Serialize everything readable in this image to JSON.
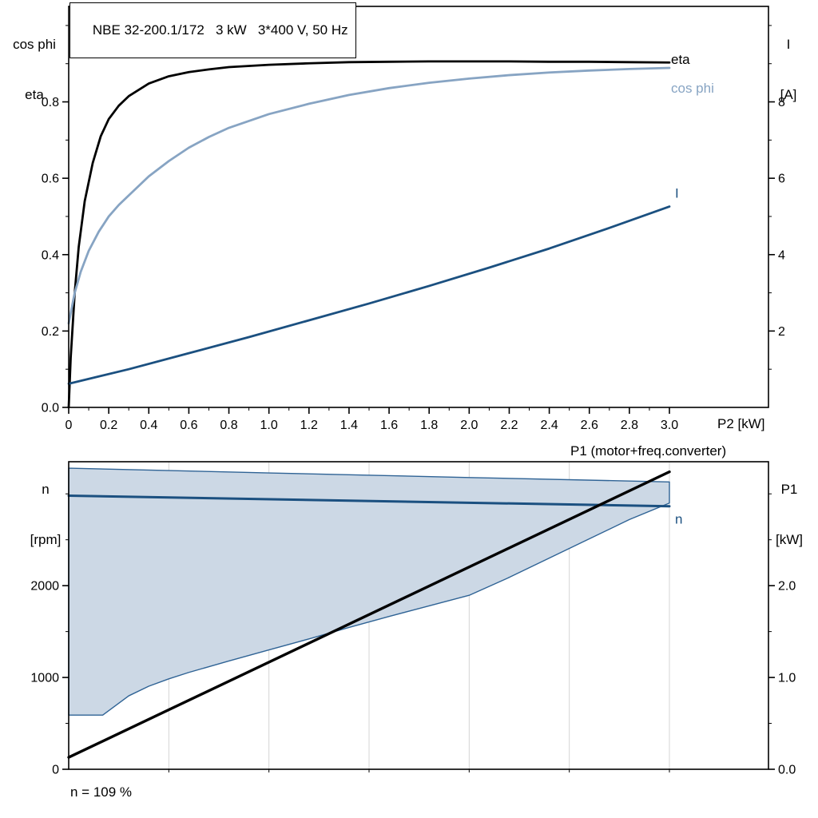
{
  "colors": {
    "background": "#ffffff",
    "frame": "#000000",
    "grid": "#d4d4d4",
    "dark_blue": "#1b5080",
    "light_blue": "#87a4c3",
    "area_fill": "#ccd8e5",
    "area_stroke": "#2f6395",
    "text": "#000000"
  },
  "chart_data": [
    {
      "id": "top",
      "type": "line",
      "title": "NBE 32-200.1/172   3 kW   3*400 V, 50 Hz",
      "x_axis": {
        "title": "P2 [kW]",
        "min": 0,
        "data_max": 3.0,
        "frame_max": 3.5,
        "minor_step": 0.1,
        "ticks": [
          {
            "v": 0,
            "label": "0"
          },
          {
            "v": 0.2,
            "label": "0.2"
          },
          {
            "v": 0.4,
            "label": "0.4"
          },
          {
            "v": 0.6,
            "label": "0.6"
          },
          {
            "v": 0.8,
            "label": "0.8"
          },
          {
            "v": 1.0,
            "label": "1.0"
          },
          {
            "v": 1.2,
            "label": "1.2"
          },
          {
            "v": 1.4,
            "label": "1.4"
          },
          {
            "v": 1.6,
            "label": "1.6"
          },
          {
            "v": 1.8,
            "label": "1.8"
          },
          {
            "v": 2.0,
            "label": "2.0"
          },
          {
            "v": 2.2,
            "label": "2.2"
          },
          {
            "v": 2.4,
            "label": "2.4"
          },
          {
            "v": 2.6,
            "label": "2.6"
          },
          {
            "v": 2.8,
            "label": "2.8"
          },
          {
            "v": 3.0,
            "label": "3.0"
          }
        ]
      },
      "left_axis": {
        "title": [
          "cos phi",
          "eta"
        ],
        "min": 0,
        "max": 1.05,
        "minor_step": 0.1,
        "ticks": [
          {
            "v": 0,
            "label": "0.0"
          },
          {
            "v": 0.2,
            "label": "0.2"
          },
          {
            "v": 0.4,
            "label": "0.4"
          },
          {
            "v": 0.6,
            "label": "0.6"
          },
          {
            "v": 0.8,
            "label": "0.8"
          }
        ]
      },
      "right_axis": {
        "title": [
          "I",
          "[A]"
        ],
        "min": 0,
        "max": 10.5,
        "minor_step": 1,
        "ticks": [
          {
            "v": 2,
            "label": "2"
          },
          {
            "v": 4,
            "label": "4"
          },
          {
            "v": 6,
            "label": "6"
          },
          {
            "v": 8,
            "label": "8"
          }
        ]
      },
      "series": [
        {
          "name": "eta",
          "color": "#000000",
          "width": 2.8,
          "axis": "left",
          "x": [
            0,
            0.01,
            0.03,
            0.05,
            0.08,
            0.12,
            0.16,
            0.2,
            0.25,
            0.3,
            0.4,
            0.5,
            0.6,
            0.7,
            0.8,
            1.0,
            1.2,
            1.4,
            1.6,
            1.8,
            2.0,
            2.2,
            2.4,
            2.6,
            2.8,
            3.0
          ],
          "y": [
            0,
            0.13,
            0.3,
            0.42,
            0.54,
            0.64,
            0.71,
            0.755,
            0.79,
            0.815,
            0.848,
            0.867,
            0.878,
            0.885,
            0.891,
            0.897,
            0.901,
            0.904,
            0.905,
            0.906,
            0.906,
            0.906,
            0.905,
            0.905,
            0.904,
            0.903
          ],
          "label": {
            "text": "eta",
            "x": 3.0,
            "y": 0.91,
            "color": "#000000"
          }
        },
        {
          "name": "cos phi",
          "color": "#87a4c3",
          "width": 2.8,
          "axis": "left",
          "x": [
            0,
            0.03,
            0.06,
            0.1,
            0.15,
            0.2,
            0.25,
            0.3,
            0.4,
            0.5,
            0.6,
            0.7,
            0.8,
            1.0,
            1.2,
            1.4,
            1.6,
            1.8,
            2.0,
            2.2,
            2.4,
            2.6,
            2.8,
            3.0
          ],
          "y": [
            0.22,
            0.3,
            0.355,
            0.41,
            0.46,
            0.5,
            0.53,
            0.555,
            0.605,
            0.645,
            0.68,
            0.708,
            0.732,
            0.768,
            0.795,
            0.818,
            0.836,
            0.85,
            0.861,
            0.87,
            0.877,
            0.882,
            0.886,
            0.889
          ],
          "label": {
            "text": "cos phi",
            "x": 3.0,
            "y": 0.835,
            "color": "#87a4c3"
          }
        },
        {
          "name": "I",
          "color": "#1b5080",
          "width": 2.8,
          "axis": "right",
          "x": [
            0,
            0.3,
            0.6,
            0.9,
            1.2,
            1.5,
            1.8,
            2.1,
            2.4,
            2.7,
            3.0
          ],
          "y": [
            0.62,
            1.0,
            1.42,
            1.84,
            2.28,
            2.72,
            3.18,
            3.66,
            4.16,
            4.7,
            5.26
          ],
          "label": {
            "text": "I",
            "x": 3.02,
            "y": 5.6,
            "color": "#1b5080"
          }
        }
      ]
    },
    {
      "id": "bottom",
      "type": "line",
      "x_axis": {
        "min": 0,
        "data_max": 3.0,
        "frame_max": 3.5,
        "minor_step": 0.5,
        "ticks": [],
        "grid": [
          0.5,
          1.0,
          1.5,
          2.0,
          2.5,
          3.0
        ]
      },
      "left_axis": {
        "title": [
          "n",
          "[rpm]"
        ],
        "min": 0,
        "max": 3350,
        "minor_step": 500,
        "ticks": [
          {
            "v": 0,
            "label": "0"
          },
          {
            "v": 1000,
            "label": "1000"
          },
          {
            "v": 2000,
            "label": "2000"
          }
        ]
      },
      "right_axis": {
        "title": [
          "P1",
          "[kW]"
        ],
        "min": 0,
        "max": 3.35,
        "minor_step": 0.5,
        "ticks": [
          {
            "v": 0,
            "label": "0.0"
          },
          {
            "v": 1,
            "label": "1.0"
          },
          {
            "v": 2,
            "label": "2.0"
          }
        ]
      },
      "series": [
        {
          "name": "speed-range",
          "type": "area",
          "axis": "left",
          "fill": "#ccd8e5",
          "stroke": "#2f6395",
          "x_upper": [
            0,
            1.0,
            2.0,
            3.0
          ],
          "y_upper": [
            3280,
            3228,
            3178,
            3130
          ],
          "x_lower": [
            0,
            0.17,
            0.3,
            0.4,
            0.5,
            0.6,
            0.8,
            1.0,
            1.2,
            1.4,
            1.6,
            1.8,
            2.0,
            2.2,
            2.4,
            2.6,
            2.8,
            3.0
          ],
          "y_lower": [
            590,
            590,
            800,
            905,
            985,
            1055,
            1180,
            1300,
            1420,
            1545,
            1665,
            1780,
            1895,
            2090,
            2300,
            2510,
            2720,
            2900
          ]
        },
        {
          "name": "n",
          "color": "#1b5080",
          "width": 3,
          "axis": "left",
          "x": [
            0,
            3.0
          ],
          "y": [
            2980,
            2865
          ],
          "label": {
            "text": "n",
            "x": 3.02,
            "y": 2720,
            "color": "#1b5080"
          }
        },
        {
          "name": "P1",
          "color": "#000000",
          "width": 3.4,
          "axis": "right",
          "x": [
            0,
            3.0
          ],
          "y": [
            0.13,
            3.24
          ],
          "label": {
            "text": "P1 (motor+freq.converter)",
            "overlay": true
          }
        }
      ],
      "annotations": [
        {
          "text": "n = 109 %"
        }
      ]
    }
  ]
}
